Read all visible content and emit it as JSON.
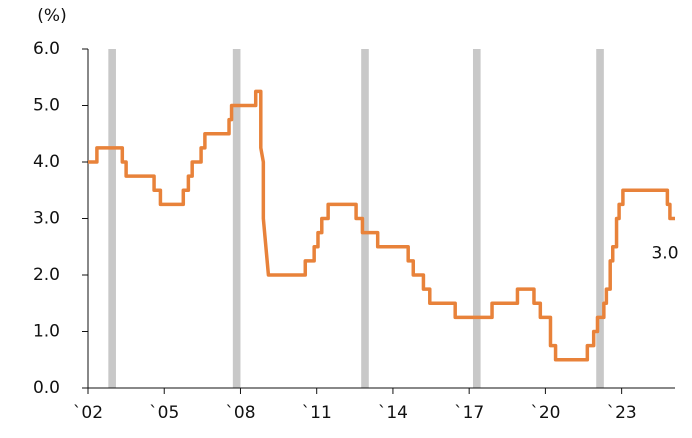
{
  "chart_data": {
    "type": "line",
    "y_label": "(%)",
    "end_label": "3.0",
    "color": "#e8823a",
    "band_color": "#c8c8c8",
    "xlim": [
      2002,
      2025.1
    ],
    "ylim": [
      0,
      6
    ],
    "xticks": [
      {
        "value": 2002,
        "label": "`02"
      },
      {
        "value": 2005,
        "label": "`05"
      },
      {
        "value": 2008,
        "label": "`08"
      },
      {
        "value": 2011,
        "label": "`11"
      },
      {
        "value": 2014,
        "label": "`14"
      },
      {
        "value": 2017,
        "label": "`17"
      },
      {
        "value": 2020,
        "label": "`20"
      },
      {
        "value": 2023,
        "label": "`23"
      }
    ],
    "yticks": [
      {
        "value": 0,
        "label": "0.0"
      },
      {
        "value": 1,
        "label": "1.0"
      },
      {
        "value": 2,
        "label": "2.0"
      },
      {
        "value": 3,
        "label": "3.0"
      },
      {
        "value": 4,
        "label": "4.0"
      },
      {
        "value": 5,
        "label": "5.0"
      },
      {
        "value": 6,
        "label": "6.0"
      }
    ],
    "shaded_periods": [
      [
        2002.8,
        2003.1
      ],
      [
        2007.7,
        2008.0
      ],
      [
        2012.75,
        2013.05
      ],
      [
        2017.15,
        2017.45
      ],
      [
        2022.0,
        2022.3
      ]
    ],
    "x": [
      2002.0,
      2002.35,
      2002.35,
      2003.35,
      2003.35,
      2003.5,
      2003.5,
      2004.6,
      2004.6,
      2004.85,
      2004.85,
      2005.75,
      2005.75,
      2005.95,
      2005.95,
      2006.1,
      2006.1,
      2006.45,
      2006.45,
      2006.6,
      2006.6,
      2007.55,
      2007.55,
      2007.65,
      2007.65,
      2008.6,
      2008.6,
      2008.8,
      2008.8,
      2008.9,
      2008.9,
      2009.0,
      2009.1,
      2010.55,
      2010.55,
      2010.9,
      2010.9,
      2011.05,
      2011.05,
      2011.2,
      2011.2,
      2011.45,
      2011.45,
      2012.55,
      2012.55,
      2012.8,
      2012.8,
      2013.4,
      2013.4,
      2014.6,
      2014.6,
      2014.8,
      2014.8,
      2015.2,
      2015.2,
      2015.45,
      2015.45,
      2016.45,
      2016.45,
      2017.9,
      2017.9,
      2018.9,
      2018.9,
      2019.55,
      2019.55,
      2019.8,
      2019.8,
      2020.2,
      2020.2,
      2020.4,
      2020.4,
      2021.65,
      2021.65,
      2021.9,
      2021.9,
      2022.05,
      2022.05,
      2022.3,
      2022.3,
      2022.4,
      2022.4,
      2022.55,
      2022.55,
      2022.65,
      2022.65,
      2022.8,
      2022.8,
      2022.9,
      2022.9,
      2023.05,
      2023.05,
      2024.8,
      2024.8,
      2024.9,
      2024.9,
      2025.1
    ],
    "values": [
      4.0,
      4.0,
      4.25,
      4.25,
      4.0,
      4.0,
      3.75,
      3.75,
      3.5,
      3.5,
      3.25,
      3.25,
      3.5,
      3.5,
      3.75,
      3.75,
      4.0,
      4.0,
      4.25,
      4.25,
      4.5,
      4.5,
      4.75,
      4.75,
      5.0,
      5.0,
      5.25,
      5.25,
      4.25,
      4.0,
      3.0,
      2.5,
      2.0,
      2.0,
      2.25,
      2.25,
      2.5,
      2.5,
      2.75,
      2.75,
      3.0,
      3.0,
      3.25,
      3.25,
      3.0,
      3.0,
      2.75,
      2.75,
      2.5,
      2.5,
      2.25,
      2.25,
      2.0,
      2.0,
      1.75,
      1.75,
      1.5,
      1.5,
      1.25,
      1.25,
      1.5,
      1.5,
      1.75,
      1.75,
      1.5,
      1.5,
      1.25,
      1.25,
      0.75,
      0.75,
      0.5,
      0.5,
      0.75,
      0.75,
      1.0,
      1.0,
      1.25,
      1.25,
      1.5,
      1.5,
      1.75,
      1.75,
      2.25,
      2.25,
      2.5,
      2.5,
      3.0,
      3.0,
      3.25,
      3.25,
      3.5,
      3.5,
      3.25,
      3.25,
      3.0,
      3.0
    ]
  }
}
